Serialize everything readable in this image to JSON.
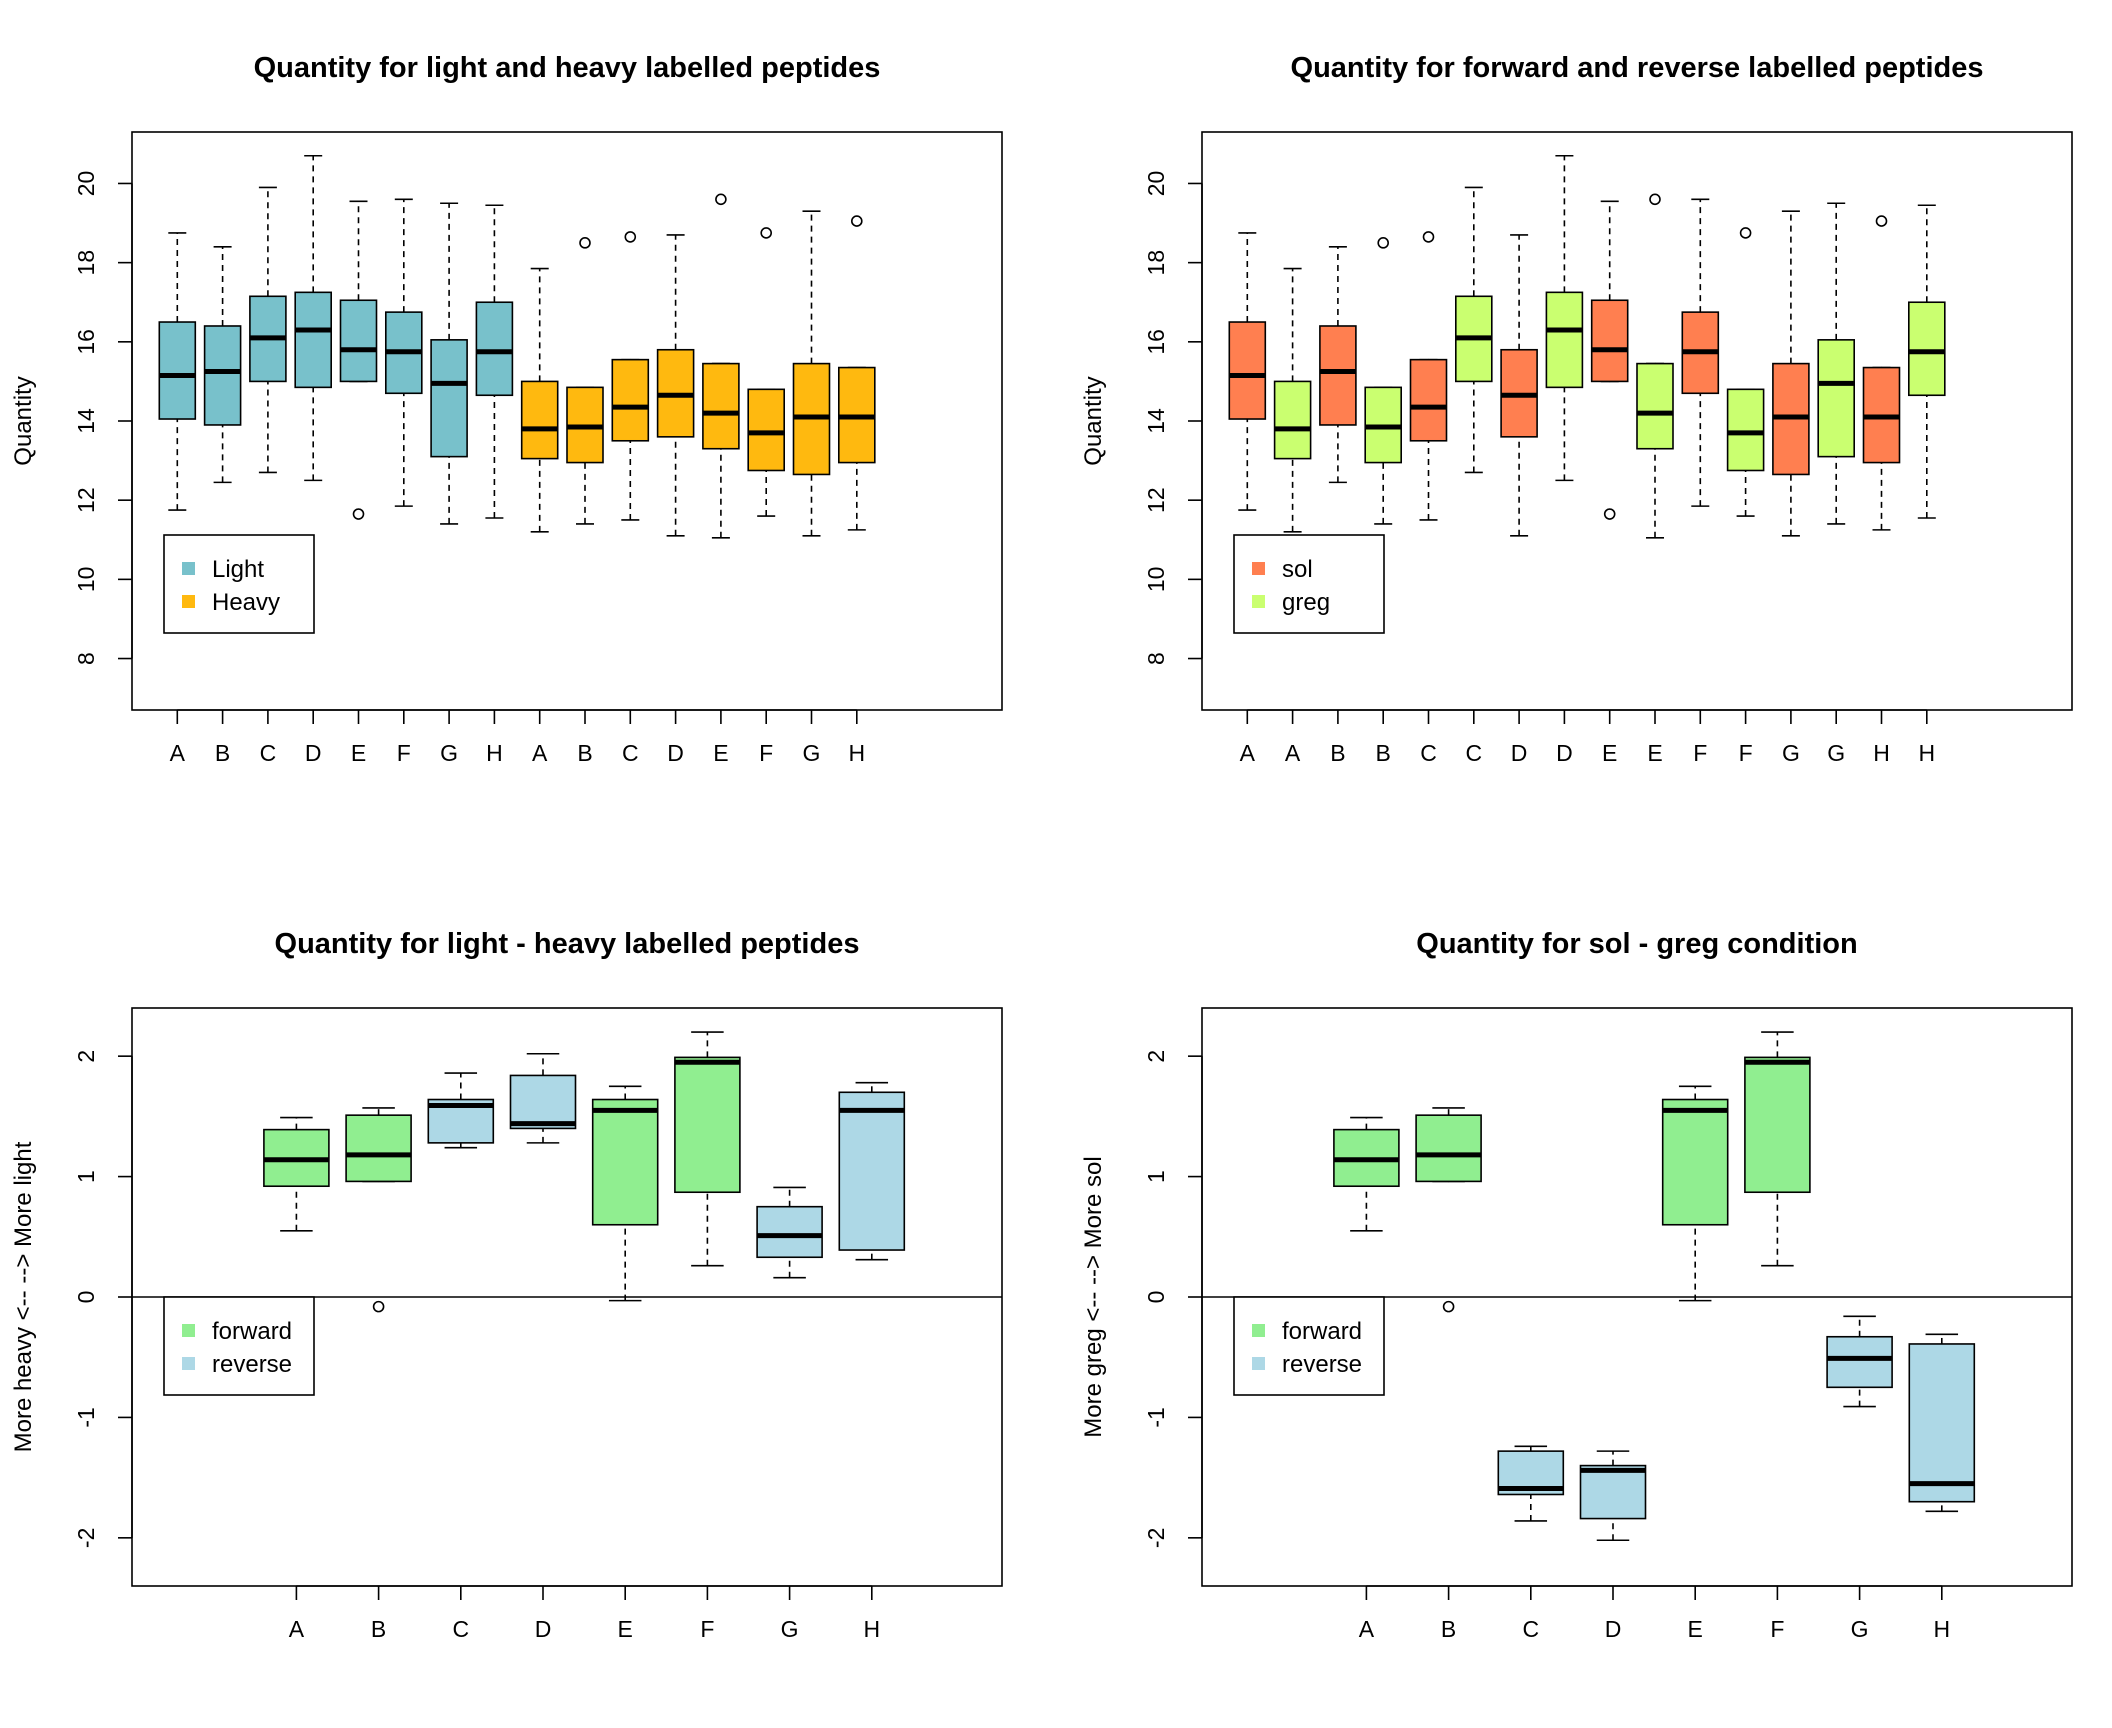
{
  "chart_data": [
    {
      "type": "boxplot",
      "title": "Quantity for light and heavy labelled peptides",
      "ylabel": "Quantity",
      "ylim": [
        6.7,
        21.3
      ],
      "yticks": [
        8,
        10,
        12,
        14,
        16,
        18,
        20
      ],
      "categories": [
        "A",
        "B",
        "C",
        "D",
        "E",
        "F",
        "G",
        "H",
        "A",
        "B",
        "C",
        "D",
        "E",
        "F",
        "G",
        "H"
      ],
      "colors": [
        "#78C1CB",
        "#78C1CB",
        "#78C1CB",
        "#78C1CB",
        "#78C1CB",
        "#78C1CB",
        "#78C1CB",
        "#78C1CB",
        "#FFB90F",
        "#FFB90F",
        "#FFB90F",
        "#FFB90F",
        "#FFB90F",
        "#FFB90F",
        "#FFB90F",
        "#FFB90F"
      ],
      "boxes": [
        {
          "low": 11.75,
          "q1": 14.05,
          "median": 15.15,
          "q3": 16.5,
          "high": 18.75,
          "outliers": []
        },
        {
          "low": 12.45,
          "q1": 13.9,
          "median": 15.25,
          "q3": 16.4,
          "high": 18.4,
          "outliers": []
        },
        {
          "low": 12.7,
          "q1": 15.0,
          "median": 16.1,
          "q3": 17.15,
          "high": 19.9,
          "outliers": []
        },
        {
          "low": 12.5,
          "q1": 14.85,
          "median": 16.3,
          "q3": 17.25,
          "high": 20.7,
          "outliers": []
        },
        {
          "low": 15.0,
          "q1": 15.0,
          "median": 15.8,
          "q3": 17.05,
          "high": 19.55,
          "outliers": [
            11.65
          ]
        },
        {
          "low": 11.85,
          "q1": 14.7,
          "median": 15.75,
          "q3": 16.75,
          "high": 19.6,
          "outliers": []
        },
        {
          "low": 11.4,
          "q1": 13.1,
          "median": 14.95,
          "q3": 16.05,
          "high": 19.5,
          "outliers": []
        },
        {
          "low": 11.55,
          "q1": 14.65,
          "median": 15.75,
          "q3": 17.0,
          "high": 19.45,
          "outliers": []
        },
        {
          "low": 11.2,
          "q1": 13.05,
          "median": 13.8,
          "q3": 15.0,
          "high": 17.85,
          "outliers": []
        },
        {
          "low": 11.4,
          "q1": 12.95,
          "median": 13.85,
          "q3": 14.85,
          "high": 14.85,
          "outliers": [
            18.5
          ]
        },
        {
          "low": 11.5,
          "q1": 13.5,
          "median": 14.35,
          "q3": 15.55,
          "high": 15.55,
          "outliers": [
            18.65
          ]
        },
        {
          "low": 11.1,
          "q1": 13.6,
          "median": 14.65,
          "q3": 15.8,
          "high": 18.7,
          "outliers": []
        },
        {
          "low": 11.05,
          "q1": 13.3,
          "median": 14.2,
          "q3": 15.45,
          "high": 15.45,
          "outliers": [
            19.6
          ]
        },
        {
          "low": 11.6,
          "q1": 12.75,
          "median": 13.7,
          "q3": 14.8,
          "high": 14.8,
          "outliers": [
            18.75
          ]
        },
        {
          "low": 11.1,
          "q1": 12.65,
          "median": 14.1,
          "q3": 15.45,
          "high": 19.3,
          "outliers": []
        },
        {
          "low": 11.25,
          "q1": 12.95,
          "median": 14.1,
          "q3": 15.35,
          "high": 15.35,
          "outliers": [
            19.05
          ]
        }
      ],
      "legend": {
        "position": "bottom-left",
        "entries": [
          {
            "label": "Light",
            "color": "#78C1CB"
          },
          {
            "label": "Heavy",
            "color": "#FFB90F"
          }
        ]
      }
    },
    {
      "type": "boxplot",
      "title": "Quantity for forward and reverse labelled peptides",
      "ylabel": "Quantity",
      "ylim": [
        6.7,
        21.3
      ],
      "yticks": [
        8,
        10,
        12,
        14,
        16,
        18,
        20
      ],
      "categories": [
        "A",
        "A",
        "B",
        "B",
        "C",
        "C",
        "D",
        "D",
        "E",
        "E",
        "F",
        "F",
        "G",
        "G",
        "H",
        "H"
      ],
      "colors": [
        "#FF7F50",
        "#CAFF70",
        "#FF7F50",
        "#CAFF70",
        "#FF7F50",
        "#CAFF70",
        "#FF7F50",
        "#CAFF70",
        "#FF7F50",
        "#CAFF70",
        "#FF7F50",
        "#CAFF70",
        "#FF7F50",
        "#CAFF70",
        "#FF7F50",
        "#CAFF70"
      ],
      "boxes": [
        {
          "low": 11.75,
          "q1": 14.05,
          "median": 15.15,
          "q3": 16.5,
          "high": 18.75,
          "outliers": []
        },
        {
          "low": 11.2,
          "q1": 13.05,
          "median": 13.8,
          "q3": 15.0,
          "high": 17.85,
          "outliers": []
        },
        {
          "low": 12.45,
          "q1": 13.9,
          "median": 15.25,
          "q3": 16.4,
          "high": 18.4,
          "outliers": []
        },
        {
          "low": 11.4,
          "q1": 12.95,
          "median": 13.85,
          "q3": 14.85,
          "high": 14.85,
          "outliers": [
            18.5
          ]
        },
        {
          "low": 11.5,
          "q1": 13.5,
          "median": 14.35,
          "q3": 15.55,
          "high": 15.55,
          "outliers": [
            18.65
          ]
        },
        {
          "low": 12.7,
          "q1": 15.0,
          "median": 16.1,
          "q3": 17.15,
          "high": 19.9,
          "outliers": []
        },
        {
          "low": 11.1,
          "q1": 13.6,
          "median": 14.65,
          "q3": 15.8,
          "high": 18.7,
          "outliers": []
        },
        {
          "low": 12.5,
          "q1": 14.85,
          "median": 16.3,
          "q3": 17.25,
          "high": 20.7,
          "outliers": []
        },
        {
          "low": 15.0,
          "q1": 15.0,
          "median": 15.8,
          "q3": 17.05,
          "high": 19.55,
          "outliers": [
            11.65
          ]
        },
        {
          "low": 11.05,
          "q1": 13.3,
          "median": 14.2,
          "q3": 15.45,
          "high": 15.45,
          "outliers": [
            19.6
          ]
        },
        {
          "low": 11.85,
          "q1": 14.7,
          "median": 15.75,
          "q3": 16.75,
          "high": 19.6,
          "outliers": []
        },
        {
          "low": 11.6,
          "q1": 12.75,
          "median": 13.7,
          "q3": 14.8,
          "high": 14.8,
          "outliers": [
            18.75
          ]
        },
        {
          "low": 11.1,
          "q1": 12.65,
          "median": 14.1,
          "q3": 15.45,
          "high": 19.3,
          "outliers": []
        },
        {
          "low": 11.4,
          "q1": 13.1,
          "median": 14.95,
          "q3": 16.05,
          "high": 19.5,
          "outliers": []
        },
        {
          "low": 11.25,
          "q1": 12.95,
          "median": 14.1,
          "q3": 15.35,
          "high": 15.35,
          "outliers": [
            19.05
          ]
        },
        {
          "low": 11.55,
          "q1": 14.65,
          "median": 15.75,
          "q3": 17.0,
          "high": 19.45,
          "outliers": []
        }
      ],
      "legend": {
        "position": "bottom-left",
        "entries": [
          {
            "label": "sol",
            "color": "#FF7F50"
          },
          {
            "label": "greg",
            "color": "#CAFF70"
          }
        ]
      }
    },
    {
      "type": "boxplot",
      "title": "Quantity for light - heavy labelled peptides",
      "ylabel": "More heavy <-- --> More light",
      "ylim": [
        -2.4,
        2.4
      ],
      "yticks": [
        -2,
        -1,
        0,
        1,
        2
      ],
      "hline": 0,
      "categories": [
        "A",
        "B",
        "C",
        "D",
        "E",
        "F",
        "G",
        "H"
      ],
      "colors": [
        "#90EE90",
        "#90EE90",
        "#ADD8E6",
        "#ADD8E6",
        "#90EE90",
        "#90EE90",
        "#ADD8E6",
        "#ADD8E6"
      ],
      "boxes": [
        {
          "low": 0.55,
          "q1": 0.92,
          "median": 1.14,
          "q3": 1.39,
          "high": 1.49,
          "outliers": []
        },
        {
          "low": 0.96,
          "q1": 0.96,
          "median": 1.18,
          "q3": 1.51,
          "high": 1.57,
          "outliers": [
            -0.08
          ]
        },
        {
          "low": 1.24,
          "q1": 1.28,
          "median": 1.59,
          "q3": 1.64,
          "high": 1.86,
          "outliers": []
        },
        {
          "low": 1.28,
          "q1": 1.4,
          "median": 1.44,
          "q3": 1.84,
          "high": 2.02,
          "outliers": []
        },
        {
          "low": -0.03,
          "q1": 0.6,
          "median": 1.55,
          "q3": 1.64,
          "high": 1.75,
          "outliers": []
        },
        {
          "low": 0.26,
          "q1": 0.87,
          "median": 1.95,
          "q3": 1.99,
          "high": 2.2,
          "outliers": []
        },
        {
          "low": 0.16,
          "q1": 0.33,
          "median": 0.51,
          "q3": 0.75,
          "high": 0.91,
          "outliers": []
        },
        {
          "low": 0.31,
          "q1": 0.39,
          "median": 1.55,
          "q3": 1.7,
          "high": 1.78,
          "outliers": []
        }
      ],
      "legend": {
        "position": "bottom-left",
        "entries": [
          {
            "label": "forward",
            "color": "#90EE90"
          },
          {
            "label": "reverse",
            "color": "#ADD8E6"
          }
        ]
      }
    },
    {
      "type": "boxplot",
      "title": "Quantity for sol - greg condition",
      "ylabel": "More greg <-- --> More sol",
      "ylim": [
        -2.4,
        2.4
      ],
      "yticks": [
        -2,
        -1,
        0,
        1,
        2
      ],
      "hline": 0,
      "categories": [
        "A",
        "B",
        "C",
        "D",
        "E",
        "F",
        "G",
        "H"
      ],
      "colors": [
        "#90EE90",
        "#90EE90",
        "#ADD8E6",
        "#ADD8E6",
        "#90EE90",
        "#90EE90",
        "#ADD8E6",
        "#ADD8E6"
      ],
      "boxes": [
        {
          "low": 0.55,
          "q1": 0.92,
          "median": 1.14,
          "q3": 1.39,
          "high": 1.49,
          "outliers": []
        },
        {
          "low": 0.96,
          "q1": 0.96,
          "median": 1.18,
          "q3": 1.51,
          "high": 1.57,
          "outliers": [
            -0.08
          ]
        },
        {
          "low": -1.86,
          "q1": -1.64,
          "median": -1.59,
          "q3": -1.28,
          "high": -1.24,
          "outliers": []
        },
        {
          "low": -2.02,
          "q1": -1.84,
          "median": -1.44,
          "q3": -1.4,
          "high": -1.28,
          "outliers": []
        },
        {
          "low": -0.03,
          "q1": 0.6,
          "median": 1.55,
          "q3": 1.64,
          "high": 1.75,
          "outliers": []
        },
        {
          "low": 0.26,
          "q1": 0.87,
          "median": 1.95,
          "q3": 1.99,
          "high": 2.2,
          "outliers": []
        },
        {
          "low": -0.91,
          "q1": -0.75,
          "median": -0.51,
          "q3": -0.33,
          "high": -0.16,
          "outliers": []
        },
        {
          "low": -1.78,
          "q1": -1.7,
          "median": -1.55,
          "q3": -0.39,
          "high": -0.31,
          "outliers": []
        }
      ],
      "legend": {
        "position": "bottom-left",
        "entries": [
          {
            "label": "forward",
            "color": "#90EE90"
          },
          {
            "label": "reverse",
            "color": "#ADD8E6"
          }
        ]
      }
    }
  ]
}
